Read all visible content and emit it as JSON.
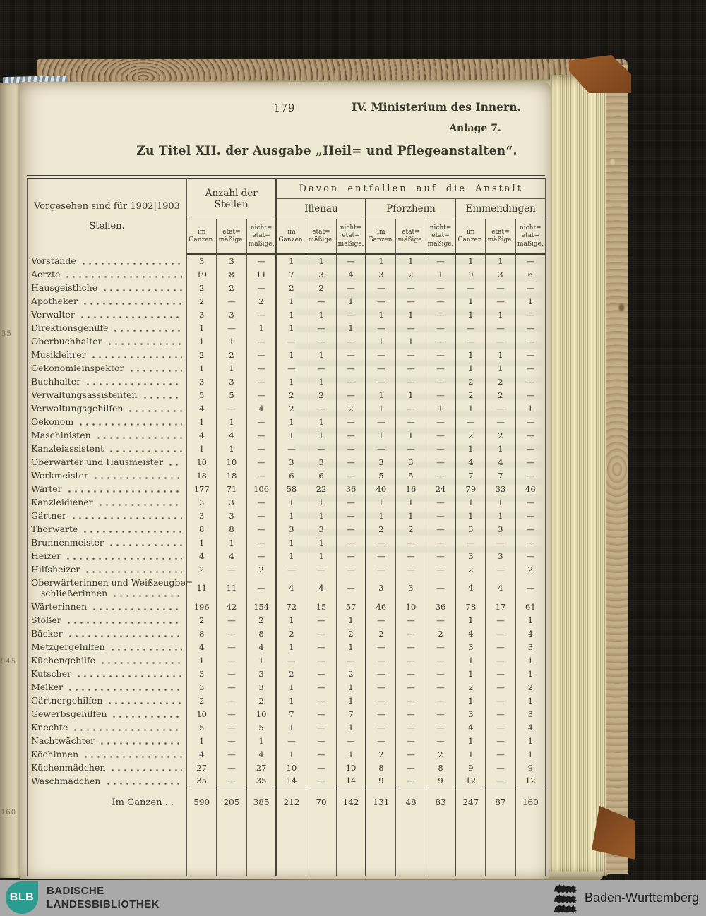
{
  "colors": {
    "background_cloth": "#17140f",
    "page_cream": "#efe8d3",
    "ink": "#3c362b",
    "leather_brown": "#8a4f22",
    "marble_tan": "#a8916b",
    "footer_bar_gray": "#a9a9a9",
    "logo_teal": "#2b9c90"
  },
  "page": {
    "page_number": "179",
    "ministry": "IV. Ministerium des Innern.",
    "annex": "Anlage 7.",
    "title": "Zu Titel XII. der Ausgabe „Heil= und Pflegeanstalten“."
  },
  "edge_fragments": [
    "35",
    "945",
    "160"
  ],
  "table": {
    "header_left_line1": "Vorgesehen sind für 1902|1903",
    "header_left_line2": "Stellen.",
    "group_count_label": "Anzahl der Stellen",
    "group_davon_label": "Davon entfallen auf die Anstalt",
    "anstalten": [
      "Illenau",
      "Pforzheim",
      "Emmendingen"
    ],
    "subcols": [
      "im\nGanzen.",
      "etat=\nmäßige.",
      "nicht=\netat=\nmäßige."
    ],
    "rows": [
      {
        "label": "Vorstände",
        "values": [
          "3",
          "3",
          "—",
          "1",
          "1",
          "—",
          "1",
          "1",
          "—",
          "1",
          "1",
          "—"
        ]
      },
      {
        "label": "Aerzte",
        "values": [
          "19",
          "8",
          "11",
          "7",
          "3",
          "4",
          "3",
          "2",
          "1",
          "9",
          "3",
          "6"
        ]
      },
      {
        "label": "Hausgeistliche",
        "values": [
          "2",
          "2",
          "—",
          "2",
          "2",
          "—",
          "—",
          "—",
          "—",
          "—",
          "—",
          "—"
        ]
      },
      {
        "label": "Apotheker",
        "values": [
          "2",
          "—",
          "2",
          "1",
          "—",
          "1",
          "—",
          "—",
          "—",
          "1",
          "—",
          "1"
        ]
      },
      {
        "label": "Verwalter",
        "values": [
          "3",
          "3",
          "—",
          "1",
          "1",
          "—",
          "1",
          "1",
          "—",
          "1",
          "1",
          "—"
        ]
      },
      {
        "label": "Direktionsgehilfe",
        "values": [
          "1",
          "—",
          "1",
          "1",
          "—",
          "1",
          "—",
          "—",
          "—",
          "—",
          "—",
          "—"
        ]
      },
      {
        "label": "Oberbuchhalter",
        "values": [
          "1",
          "1",
          "—",
          "—",
          "—",
          "—",
          "1",
          "1",
          "—",
          "—",
          "—",
          "—"
        ]
      },
      {
        "label": "Musiklehrer",
        "values": [
          "2",
          "2",
          "—",
          "1",
          "1",
          "—",
          "—",
          "—",
          "—",
          "1",
          "1",
          "—"
        ]
      },
      {
        "label": "Oekonomieinspektor",
        "values": [
          "1",
          "1",
          "—",
          "—",
          "—",
          "—",
          "—",
          "—",
          "—",
          "1",
          "1",
          "—"
        ]
      },
      {
        "label": "Buchhalter",
        "values": [
          "3",
          "3",
          "—",
          "1",
          "1",
          "—",
          "—",
          "—",
          "—",
          "2",
          "2",
          "—"
        ]
      },
      {
        "label": "Verwaltungsassistenten",
        "values": [
          "5",
          "5",
          "—",
          "2",
          "2",
          "—",
          "1",
          "1",
          "—",
          "2",
          "2",
          "—"
        ]
      },
      {
        "label": "Verwaltungsgehilfen",
        "values": [
          "4",
          "—",
          "4",
          "2",
          "—",
          "2",
          "1",
          "—",
          "1",
          "1",
          "—",
          "1"
        ]
      },
      {
        "label": "Oekonom",
        "values": [
          "1",
          "1",
          "—",
          "1",
          "1",
          "—",
          "—",
          "—",
          "—",
          "—",
          "—",
          "—"
        ]
      },
      {
        "label": "Maschinisten",
        "values": [
          "4",
          "4",
          "—",
          "1",
          "1",
          "—",
          "1",
          "1",
          "—",
          "2",
          "2",
          "—"
        ]
      },
      {
        "label": "Kanzleiassistent",
        "values": [
          "1",
          "1",
          "—",
          "—",
          "—",
          "—",
          "—",
          "—",
          "—",
          "1",
          "1",
          "—"
        ]
      },
      {
        "label": "Oberwärter und Hausmeister",
        "values": [
          "10",
          "10",
          "—",
          "3",
          "3",
          "—",
          "3",
          "3",
          "—",
          "4",
          "4",
          "—"
        ]
      },
      {
        "label": "Werkmeister",
        "values": [
          "18",
          "18",
          "—",
          "6",
          "6",
          "—",
          "5",
          "5",
          "—",
          "7",
          "7",
          "—"
        ]
      },
      {
        "label": "Wärter",
        "values": [
          "177",
          "71",
          "106",
          "58",
          "22",
          "36",
          "40",
          "16",
          "24",
          "79",
          "33",
          "46"
        ]
      },
      {
        "label": "Kanzleidiener",
        "values": [
          "3",
          "3",
          "—",
          "1",
          "1",
          "—",
          "1",
          "1",
          "—",
          "1",
          "1",
          "—"
        ]
      },
      {
        "label": "Gärtner",
        "values": [
          "3",
          "3",
          "—",
          "1",
          "1",
          "—",
          "1",
          "1",
          "—",
          "1",
          "1",
          "—"
        ]
      },
      {
        "label": "Thorwarte",
        "values": [
          "8",
          "8",
          "—",
          "3",
          "3",
          "—",
          "2",
          "2",
          "—",
          "3",
          "3",
          "—"
        ]
      },
      {
        "label": "Brunnenmeister",
        "values": [
          "1",
          "1",
          "—",
          "1",
          "1",
          "—",
          "—",
          "—",
          "—",
          "—",
          "—",
          "—"
        ]
      },
      {
        "label": "Heizer",
        "values": [
          "4",
          "4",
          "—",
          "1",
          "1",
          "—",
          "—",
          "—",
          "—",
          "3",
          "3",
          "—"
        ]
      },
      {
        "label": "Hilfsheizer",
        "values": [
          "2",
          "—",
          "2",
          "—",
          "—",
          "—",
          "—",
          "—",
          "—",
          "2",
          "—",
          "2"
        ]
      },
      {
        "label": "Oberwärterinnen und Weißzeugbe=",
        "label2": "schließerinnen",
        "values": [
          "11",
          "11",
          "—",
          "4",
          "4",
          "—",
          "3",
          "3",
          "—",
          "4",
          "4",
          "—"
        ]
      },
      {
        "label": "Wärterinnen",
        "values": [
          "196",
          "42",
          "154",
          "72",
          "15",
          "57",
          "46",
          "10",
          "36",
          "78",
          "17",
          "61"
        ]
      },
      {
        "label": "Stößer",
        "values": [
          "2",
          "—",
          "2",
          "1",
          "—",
          "1",
          "—",
          "—",
          "—",
          "1",
          "—",
          "1"
        ]
      },
      {
        "label": "Bäcker",
        "values": [
          "8",
          "—",
          "8",
          "2",
          "—",
          "2",
          "2",
          "—",
          "2",
          "4",
          "—",
          "4"
        ]
      },
      {
        "label": "Metzgergehilfen",
        "values": [
          "4",
          "—",
          "4",
          "1",
          "—",
          "1",
          "—",
          "—",
          "—",
          "3",
          "—",
          "3"
        ]
      },
      {
        "label": "Küchengehilfe",
        "values": [
          "1",
          "—",
          "1",
          "—",
          "—",
          "—",
          "—",
          "—",
          "—",
          "1",
          "—",
          "1"
        ]
      },
      {
        "label": "Kutscher",
        "values": [
          "3",
          "—",
          "3",
          "2",
          "—",
          "2",
          "—",
          "—",
          "—",
          "1",
          "—",
          "1"
        ]
      },
      {
        "label": "Melker",
        "values": [
          "3",
          "—",
          "3",
          "1",
          "—",
          "1",
          "—",
          "—",
          "—",
          "2",
          "—",
          "2"
        ]
      },
      {
        "label": "Gärtnergehilfen",
        "values": [
          "2",
          "—",
          "2",
          "1",
          "—",
          "1",
          "—",
          "—",
          "—",
          "1",
          "—",
          "1"
        ]
      },
      {
        "label": "Gewerbsgehilfen",
        "values": [
          "10",
          "—",
          "10",
          "7",
          "—",
          "7",
          "—",
          "—",
          "—",
          "3",
          "—",
          "3"
        ]
      },
      {
        "label": "Knechte",
        "values": [
          "5",
          "—",
          "5",
          "1",
          "—",
          "1",
          "—",
          "—",
          "—",
          "4",
          "—",
          "4"
        ]
      },
      {
        "label": "Nachtwächter",
        "values": [
          "1",
          "—",
          "1",
          "—",
          "—",
          "—",
          "—",
          "—",
          "—",
          "1",
          "—",
          "1"
        ]
      },
      {
        "label": "Köchinnen",
        "values": [
          "4",
          "—",
          "4",
          "1",
          "—",
          "1",
          "2",
          "—",
          "2",
          "1",
          "—",
          "1"
        ]
      },
      {
        "label": "Küchenmädchen",
        "values": [
          "27",
          "—",
          "27",
          "10",
          "—",
          "10",
          "8",
          "—",
          "8",
          "9",
          "—",
          "9"
        ]
      },
      {
        "label": "Waschmädchen",
        "values": [
          "35",
          "—",
          "35",
          "14",
          "—",
          "14",
          "9",
          "—",
          "9",
          "12",
          "—",
          "12"
        ]
      }
    ],
    "total": {
      "label": "Im Ganzen . .",
      "values": [
        "590",
        "205",
        "385",
        "212",
        "70",
        "142",
        "131",
        "48",
        "83",
        "247",
        "87",
        "160"
      ]
    }
  },
  "footer": {
    "logo_text": "BLB",
    "library_line1": "BADISCHE",
    "library_line2": "LANDESBIBLIOTHEK",
    "state_name": "Baden-Württemberg"
  }
}
